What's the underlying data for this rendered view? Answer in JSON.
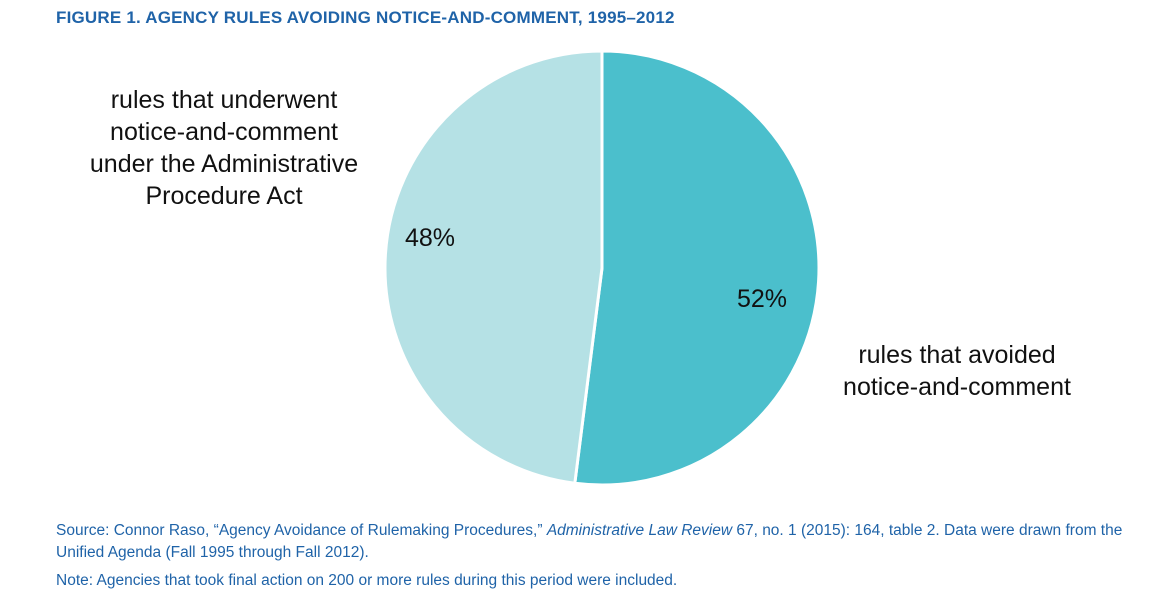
{
  "title": "FIGURE 1. AGENCY RULES AVOIDING NOTICE-AND-COMMENT, 1995–2012",
  "chart_data": {
    "type": "pie",
    "slices": [
      {
        "label": "rules that avoided notice-and-comment",
        "value": 52,
        "value_label": "52%",
        "color": "#4bbfcc"
      },
      {
        "label": "rules that underwent notice-and-comment under the Administrative Procedure Act",
        "value": 48,
        "value_label": "48%",
        "color": "#b5e1e5"
      }
    ]
  },
  "labels": {
    "avoided": "rules that avoided\nnotice-and-comment",
    "underwent": "rules that underwent\nnotice-and-comment\nunder the Administrative\nProcedure Act"
  },
  "source": {
    "prefix": "Source: Connor Raso, “Agency Avoidance of Rulemaking Procedures,” ",
    "journal": "Administrative Law Review",
    "suffix": " 67, no. 1 (2015): 164, table 2. Data were drawn from the Unified Agenda (Fall 1995 through Fall 2012)."
  },
  "note": "Note: Agencies that took final action on 200 or more rules during this period were included."
}
